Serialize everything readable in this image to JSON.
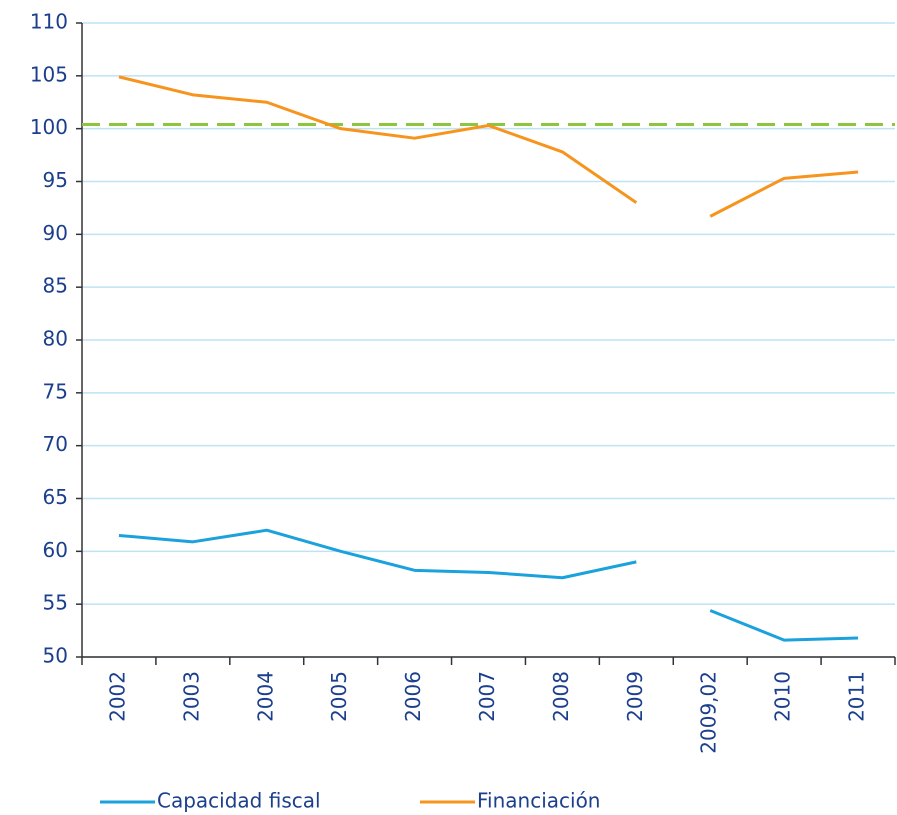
{
  "chart_data": {
    "type": "line",
    "categories": [
      "2002",
      "2003",
      "2004",
      "2005",
      "2006",
      "2007",
      "2008",
      "2009",
      "2009,02",
      "2010",
      "2011"
    ],
    "gap_before": "2009,02",
    "series": [
      {
        "name": "Capacidad fiscal",
        "color": "#1ba1dc",
        "values": [
          61.5,
          60.9,
          62.0,
          60.0,
          58.2,
          58.0,
          57.5,
          59.0,
          54.4,
          51.6,
          51.8
        ]
      },
      {
        "name": "Financiación",
        "color": "#f7941d",
        "values": [
          104.9,
          103.2,
          102.5,
          100.0,
          99.1,
          100.3,
          97.8,
          93.0,
          91.7,
          95.3,
          95.9
        ]
      }
    ],
    "reference_line": {
      "value": 100.4,
      "color": "#8cc63e",
      "style": "dashed"
    },
    "ylim": [
      50,
      110
    ],
    "yticks": [
      50,
      55,
      60,
      65,
      70,
      75,
      80,
      85,
      90,
      95,
      100,
      105,
      110
    ],
    "grid": true,
    "legend": "bottom"
  }
}
